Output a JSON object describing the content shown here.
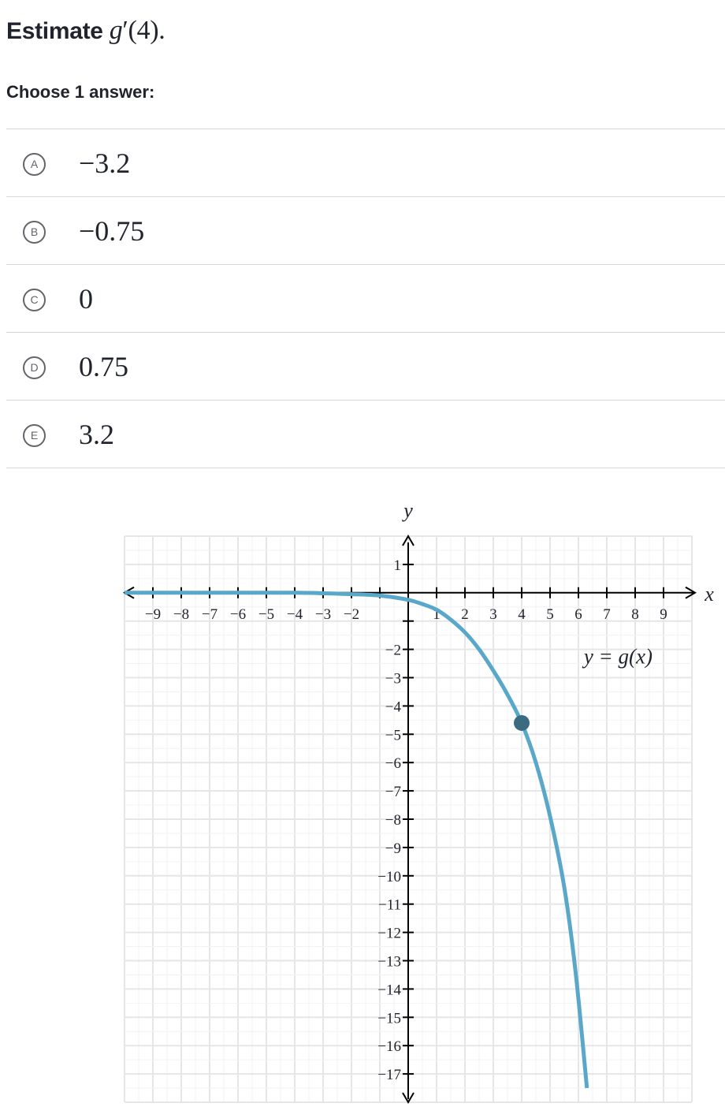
{
  "question": {
    "prefix": "Estimate ",
    "func_name": "g",
    "prime": "′",
    "arg": "(4)",
    "suffix": "."
  },
  "choose_label": "Choose 1 answer:",
  "choices": [
    {
      "letter": "A",
      "text": "−3.2"
    },
    {
      "letter": "B",
      "text": "−0.75"
    },
    {
      "letter": "C",
      "text": "0"
    },
    {
      "letter": "D",
      "text": "0.75"
    },
    {
      "letter": "E",
      "text": "3.2"
    }
  ],
  "graph": {
    "x_axis_label": "x",
    "y_axis_label": "y",
    "equation_label": "y = g(x)",
    "x_range": [
      -10,
      10
    ],
    "y_range": [
      -18,
      2
    ],
    "x_tick_labels": [
      "−9",
      "−8",
      "−7",
      "−6",
      "−5",
      "−4",
      "−3",
      "−2",
      "1",
      "2",
      "3",
      "4",
      "5",
      "6",
      "7",
      "8",
      "9"
    ],
    "x_tick_values": [
      -9,
      -8,
      -7,
      -6,
      -5,
      -4,
      -3,
      -2,
      1,
      2,
      3,
      4,
      5,
      6,
      7,
      8,
      9
    ],
    "y_tick_labels": [
      "1",
      "−2",
      "−3",
      "−4",
      "−5",
      "−6",
      "−7",
      "−8",
      "−9",
      "−10",
      "−11",
      "−12",
      "−13",
      "−14",
      "−15",
      "−16",
      "−17"
    ],
    "y_tick_values": [
      1,
      -2,
      -3,
      -4,
      -5,
      -6,
      -7,
      -8,
      -9,
      -10,
      -11,
      -12,
      -13,
      -14,
      -15,
      -16,
      -17
    ],
    "curve_color": "#5aa8c9",
    "point_color": "#3b6b80",
    "grid_color": "#e6e6e6",
    "highlighted_point": {
      "x": 4,
      "y": -4.6
    },
    "curve_points": [
      {
        "x": -10,
        "y": 0
      },
      {
        "x": -4,
        "y": 0
      },
      {
        "x": -3,
        "y": -0.02
      },
      {
        "x": -2,
        "y": -0.05
      },
      {
        "x": -1,
        "y": -0.1
      },
      {
        "x": 0,
        "y": -0.25
      },
      {
        "x": 0.5,
        "y": -0.4
      },
      {
        "x": 1,
        "y": -0.6
      },
      {
        "x": 1.5,
        "y": -0.95
      },
      {
        "x": 2,
        "y": -1.4
      },
      {
        "x": 2.5,
        "y": -2.0
      },
      {
        "x": 3,
        "y": -2.75
      },
      {
        "x": 3.5,
        "y": -3.6
      },
      {
        "x": 4,
        "y": -4.6
      },
      {
        "x": 4.5,
        "y": -6.0
      },
      {
        "x": 5,
        "y": -7.9
      },
      {
        "x": 5.5,
        "y": -10.4
      },
      {
        "x": 5.9,
        "y": -13.4
      },
      {
        "x": 6.3,
        "y": -17.5
      }
    ]
  }
}
